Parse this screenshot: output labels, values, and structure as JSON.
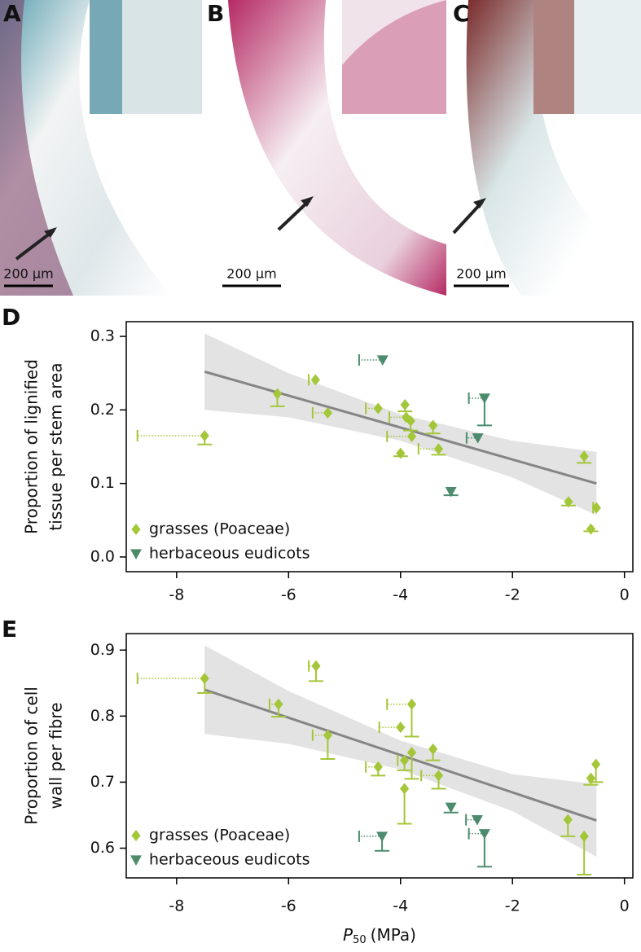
{
  "micrographs": [
    {
      "label": "A",
      "scale_bar": "200 µm"
    },
    {
      "label": "B",
      "scale_bar": "200 µm"
    },
    {
      "label": "C",
      "scale_bar": "200 µm"
    }
  ],
  "chart_data": [
    {
      "type": "scatter",
      "panel_label": "D",
      "ylabel": [
        "Proportion of lignified",
        "tissue per stem area"
      ],
      "xlim": [
        -8.9,
        0.15
      ],
      "ylim": [
        -0.02,
        0.32
      ],
      "xticks": [
        -8,
        -6,
        -4,
        -2,
        0
      ],
      "yticks": [
        {
          "value": 0,
          "label": "0.0"
        },
        0.1,
        0.2,
        0.3
      ],
      "legend": "lower left",
      "series": [
        {
          "name": "grasses (Poaceae)",
          "color": "#a4c639",
          "marker": "diamond",
          "x": [
            -7.5,
            -6.2,
            -5.52,
            -5.3,
            -4.4,
            -3.92,
            -3.9,
            -3.82,
            -3.8,
            -4.0,
            -3.42,
            -3.32,
            -0.72,
            -1.0,
            -0.5,
            -0.6
          ],
          "values": [
            0.165,
            0.222,
            0.241,
            0.196,
            0.202,
            0.207,
            0.19,
            0.185,
            0.164,
            0.141,
            0.179,
            0.147,
            0.137,
            0.075,
            0.067,
            0.038
          ],
          "x_err": [
            1.2,
            null,
            0.12,
            0.27,
            0.22,
            null,
            0.3,
            null,
            0.44,
            null,
            null,
            0.36,
            null,
            null,
            0.06,
            null
          ],
          "y_err": [
            0.012,
            0.017,
            null,
            null,
            null,
            0.009,
            null,
            0.013,
            null,
            0.004,
            0.011,
            0.008,
            0.009,
            0.005,
            null,
            0.003
          ]
        },
        {
          "name": "herbaceous eudicots",
          "color": "#4c8c6c",
          "marker": "triangle-down",
          "x": [
            -4.32,
            -2.5,
            -2.62,
            -3.1
          ],
          "values": [
            0.268,
            0.216,
            0.162,
            0.089
          ],
          "x_err": [
            0.42,
            0.28,
            0.2,
            null
          ],
          "y_err": [
            null,
            0.037,
            null,
            0.005
          ]
        }
      ],
      "fit": {
        "color": "#858585",
        "x": [
          -7.5,
          -0.5
        ],
        "y": [
          0.252,
          0.1
        ]
      },
      "band": {
        "color": "#e3e3e3",
        "x": [
          -7.5,
          -6,
          -4,
          -2,
          -0.5
        ],
        "lower": [
          0.2,
          0.19,
          0.158,
          0.108,
          0.057
        ],
        "upper": [
          0.304,
          0.25,
          0.194,
          0.158,
          0.143
        ]
      }
    },
    {
      "type": "scatter",
      "panel_label": "E",
      "ylabel": [
        "Proportion of cell",
        "wall per fibre"
      ],
      "xlabel": {
        "symbol": "P",
        "subscript": "50",
        "unit": "(MPa)"
      },
      "xlim": [
        -8.9,
        0.15
      ],
      "ylim": [
        0.555,
        0.925
      ],
      "xticks": [
        -8,
        -6,
        -4,
        -2,
        0
      ],
      "yticks": [
        0.6,
        0.7,
        0.8,
        0.9
      ],
      "legend": "lower left",
      "series": [
        {
          "name": "grasses (Poaceae)",
          "color": "#a4c639",
          "marker": "diamond",
          "x": [
            -7.5,
            -6.18,
            -5.51,
            -5.3,
            -4.4,
            -4.0,
            -3.93,
            -3.93,
            -3.8,
            -3.8,
            -3.42,
            -3.32,
            -1.01,
            -0.72,
            -0.6,
            -0.51
          ],
          "values": [
            0.857,
            0.818,
            0.876,
            0.771,
            0.723,
            0.783,
            0.733,
            0.69,
            0.818,
            0.745,
            0.75,
            0.71,
            0.643,
            0.618,
            0.706,
            0.727
          ],
          "x_err": [
            1.2,
            0.16,
            0.13,
            0.27,
            0.22,
            0.38,
            0.12,
            null,
            0.44,
            null,
            null,
            0.31,
            null,
            null,
            null,
            null
          ],
          "y_err": [
            0.022,
            0.019,
            0.023,
            0.036,
            0.013,
            null,
            0.015,
            0.053,
            0.049,
            0.04,
            0.017,
            0.02,
            0.025,
            0.058,
            0.01,
            0.027
          ]
        },
        {
          "name": "herbaceous eudicots",
          "color": "#4c8c6c",
          "marker": "triangle-down",
          "x": [
            -4.33,
            -3.1,
            -2.63,
            -2.5
          ],
          "values": [
            0.618,
            0.662,
            0.643,
            0.622
          ],
          "x_err": [
            0.41,
            null,
            0.2,
            0.28
          ],
          "y_err": [
            0.022,
            0.008,
            null,
            0.05
          ]
        }
      ],
      "fit": {
        "color": "#858585",
        "x": [
          -7.5,
          -0.5
        ],
        "y": [
          0.84,
          0.642
        ]
      },
      "band": {
        "color": "#e3e3e3",
        "x": [
          -7.5,
          -6,
          -4,
          -2,
          -0.5
        ],
        "lower": [
          0.773,
          0.758,
          0.719,
          0.656,
          0.587
        ],
        "upper": [
          0.907,
          0.838,
          0.763,
          0.712,
          0.697
        ]
      }
    }
  ]
}
